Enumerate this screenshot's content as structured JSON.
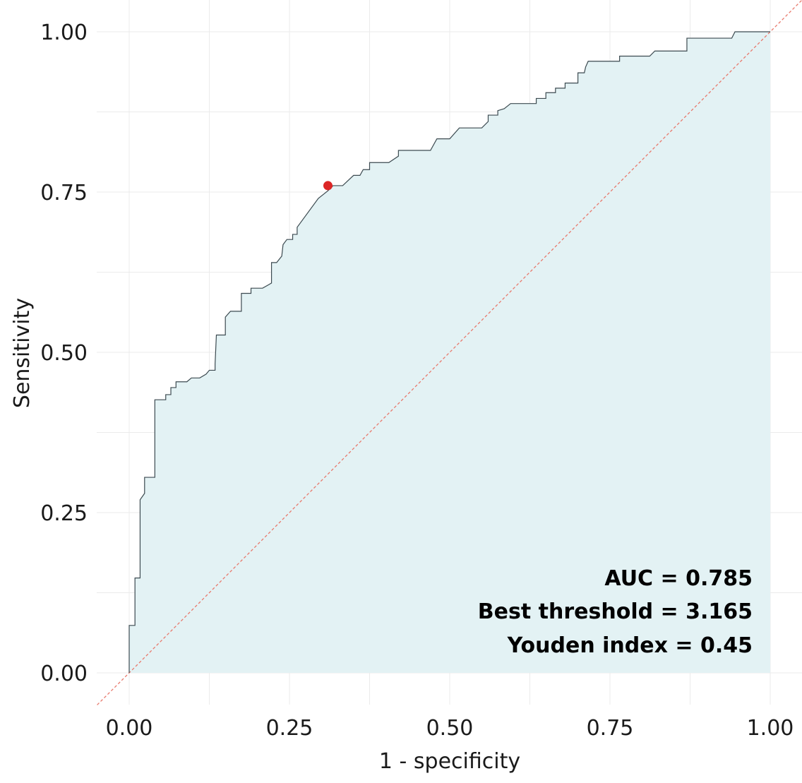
{
  "chart_data": {
    "type": "line",
    "title": "",
    "xlabel": "1 - specificity",
    "ylabel": "Sensitivity",
    "xlim": [
      -0.05,
      1.05
    ],
    "ylim": [
      -0.047,
      1.0
    ],
    "x_ticks": [
      0,
      0.25,
      0.5,
      0.75,
      1
    ],
    "x_tick_labels": [
      "0.00",
      "0.25",
      "0.50",
      "0.75",
      "1.00"
    ],
    "y_ticks": [
      0,
      0.25,
      0.5,
      0.75,
      1
    ],
    "y_tick_labels": [
      "0.00",
      "0.25",
      "0.50",
      "0.75",
      "1.00"
    ],
    "grid": true,
    "series": [
      {
        "points": [
          [
            0.0,
            0.0
          ],
          [
            0.0,
            0.074
          ],
          [
            0.009,
            0.074
          ],
          [
            0.009,
            0.148
          ],
          [
            0.017,
            0.148
          ],
          [
            0.017,
            0.27
          ],
          [
            0.024,
            0.28
          ],
          [
            0.024,
            0.305
          ],
          [
            0.04,
            0.305
          ],
          [
            0.04,
            0.426
          ],
          [
            0.057,
            0.426
          ],
          [
            0.057,
            0.434
          ],
          [
            0.065,
            0.434
          ],
          [
            0.065,
            0.445
          ],
          [
            0.073,
            0.445
          ],
          [
            0.073,
            0.454
          ],
          [
            0.09,
            0.454
          ],
          [
            0.097,
            0.46
          ],
          [
            0.11,
            0.46
          ],
          [
            0.12,
            0.466
          ],
          [
            0.125,
            0.472
          ],
          [
            0.134,
            0.472
          ],
          [
            0.134,
            0.482
          ],
          [
            0.136,
            0.527
          ],
          [
            0.15,
            0.527
          ],
          [
            0.15,
            0.555
          ],
          [
            0.158,
            0.564
          ],
          [
            0.175,
            0.564
          ],
          [
            0.175,
            0.592
          ],
          [
            0.19,
            0.592
          ],
          [
            0.19,
            0.6
          ],
          [
            0.208,
            0.6
          ],
          [
            0.222,
            0.608
          ],
          [
            0.222,
            0.64
          ],
          [
            0.23,
            0.64
          ],
          [
            0.238,
            0.65
          ],
          [
            0.24,
            0.668
          ],
          [
            0.246,
            0.676
          ],
          [
            0.255,
            0.676
          ],
          [
            0.255,
            0.684
          ],
          [
            0.262,
            0.684
          ],
          [
            0.262,
            0.695
          ],
          [
            0.295,
            0.74
          ],
          [
            0.31,
            0.752
          ],
          [
            0.318,
            0.76
          ],
          [
            0.333,
            0.76
          ],
          [
            0.35,
            0.776
          ],
          [
            0.36,
            0.776
          ],
          [
            0.365,
            0.785
          ],
          [
            0.375,
            0.785
          ],
          [
            0.375,
            0.796
          ],
          [
            0.405,
            0.796
          ],
          [
            0.42,
            0.806
          ],
          [
            0.42,
            0.815
          ],
          [
            0.47,
            0.815
          ],
          [
            0.48,
            0.833
          ],
          [
            0.5,
            0.833
          ],
          [
            0.515,
            0.85
          ],
          [
            0.55,
            0.85
          ],
          [
            0.56,
            0.86
          ],
          [
            0.56,
            0.87
          ],
          [
            0.575,
            0.87
          ],
          [
            0.575,
            0.877
          ],
          [
            0.585,
            0.88
          ],
          [
            0.595,
            0.888
          ],
          [
            0.635,
            0.888
          ],
          [
            0.635,
            0.896
          ],
          [
            0.65,
            0.896
          ],
          [
            0.65,
            0.905
          ],
          [
            0.665,
            0.905
          ],
          [
            0.665,
            0.912
          ],
          [
            0.68,
            0.912
          ],
          [
            0.68,
            0.92
          ],
          [
            0.7,
            0.92
          ],
          [
            0.7,
            0.936
          ],
          [
            0.71,
            0.936
          ],
          [
            0.712,
            0.945
          ],
          [
            0.716,
            0.954
          ],
          [
            0.765,
            0.954
          ],
          [
            0.765,
            0.962
          ],
          [
            0.812,
            0.962
          ],
          [
            0.82,
            0.97
          ],
          [
            0.87,
            0.97
          ],
          [
            0.87,
            0.99
          ],
          [
            0.94,
            0.99
          ],
          [
            0.945,
            1.0
          ],
          [
            1.0,
            1.0
          ]
        ]
      }
    ],
    "reference_line": {
      "from": [
        0,
        0
      ],
      "to": [
        1,
        1
      ],
      "style": "dashed",
      "color": "#e8796c"
    },
    "best_point": {
      "x": 0.31,
      "y": 0.76,
      "color": "#dc2626"
    },
    "colors": {
      "fill": "#e3f2f4",
      "curve": "#3c4a50",
      "grid": "#ebebeb"
    },
    "annotations": {
      "auc": "AUC = 0.785",
      "best_threshold": "Best threshold = 3.165",
      "youden": "Youden index = 0.45"
    }
  }
}
